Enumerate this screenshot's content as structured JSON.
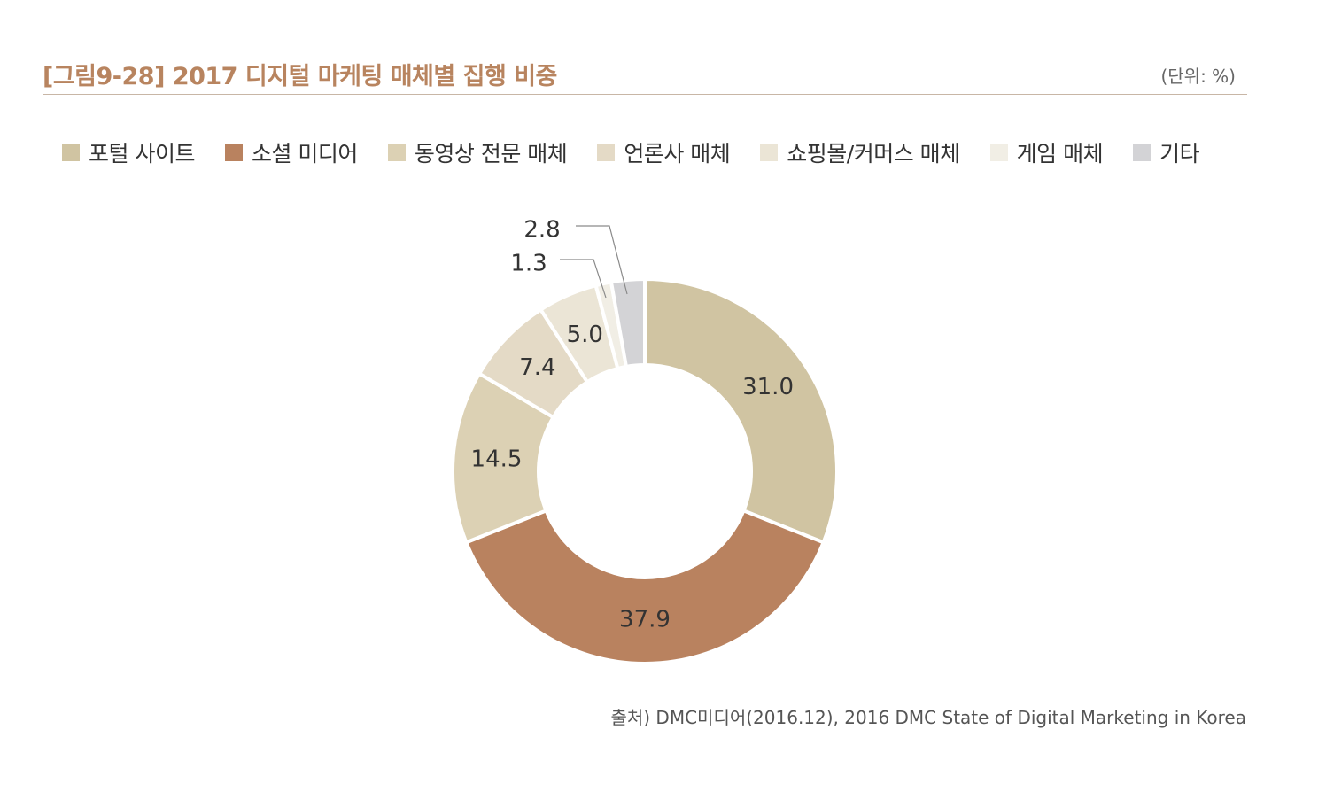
{
  "header": {
    "title": "[그림9-28] 2017 디지털 마케팅 매체별 집행 비중",
    "unit": "(단위: %)"
  },
  "chart_data": {
    "type": "pie",
    "donut": true,
    "title": "[그림9-28] 2017 디지털 마케팅 매체별 집행 비중",
    "unit": "%",
    "legend_position": "top",
    "categories": [
      "포털 사이트",
      "소셜 미디어",
      "동영상 전문 매체",
      "언론사 매체",
      "쇼핑몰/커머스 매체",
      "게임 매체",
      "기타"
    ],
    "values": [
      31.0,
      37.9,
      14.5,
      7.4,
      5.0,
      1.3,
      2.8
    ],
    "labels": [
      "31.0",
      "37.9",
      "14.5",
      "7.4",
      "5.0",
      "1.3",
      "2.8"
    ],
    "colors": [
      "#d0c4a2",
      "#b9825f",
      "#dcd1b4",
      "#e4dac6",
      "#ebe5d6",
      "#f1eee5",
      "#d3d3d6"
    ]
  },
  "footer": {
    "source": "출처) DMC미디어(2016.12), 2016 DMC State of Digital Marketing in Korea"
  }
}
